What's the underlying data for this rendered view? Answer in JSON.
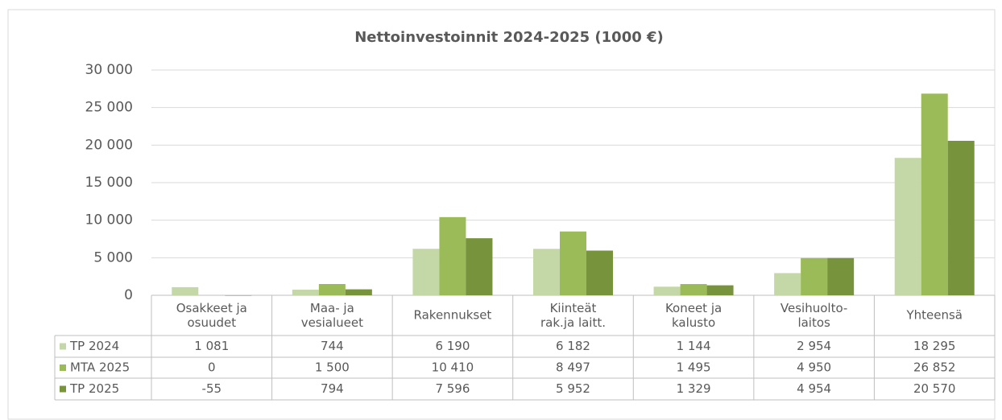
{
  "chart_data": {
    "type": "bar",
    "title": "Nettoinvestoinnit 2024-2025 (1000 €)",
    "categories": [
      "Osakkeet ja\nosuudet",
      "Maa- ja\nvesialueet",
      "Rakennukset",
      "Kiinteät\nrak.ja laitt.",
      "Koneet ja\nkalusto",
      "Vesihuolto-\nlaitos",
      "Yhteensä"
    ],
    "series": [
      {
        "name": "TP 2024",
        "color": "#c4d7a6",
        "values": [
          1081,
          744,
          6190,
          6182,
          1144,
          2954,
          18295
        ],
        "value_labels": [
          "1 081",
          "744",
          "6 190",
          "6 182",
          "1 144",
          "2 954",
          "18 295"
        ]
      },
      {
        "name": "MTA 2025",
        "color": "#9bbb59",
        "values": [
          0,
          1500,
          10410,
          8497,
          1495,
          4950,
          26852
        ],
        "value_labels": [
          "0",
          "1 500",
          "10 410",
          "8 497",
          "1 495",
          "4 950",
          "26 852"
        ]
      },
      {
        "name": "TP 2025",
        "color": "#77933c",
        "values": [
          -55,
          794,
          7596,
          5952,
          1329,
          4954,
          20570
        ],
        "value_labels": [
          "-55",
          "794",
          "7 596",
          "5 952",
          "1 329",
          "4 954",
          "20 570"
        ]
      }
    ],
    "ylim": [
      0,
      30000
    ],
    "yticks": [
      0,
      {
        "value": 5000,
        "label": "5 000"
      },
      {
        "value": 10000,
        "label": "10 000"
      },
      {
        "value": 15000,
        "label": "15 000"
      },
      {
        "value": 20000,
        "label": "20 000"
      },
      {
        "value": 25000,
        "label": "25 000"
      },
      {
        "value": 30000,
        "label": "30 000"
      }
    ],
    "grid": true
  }
}
